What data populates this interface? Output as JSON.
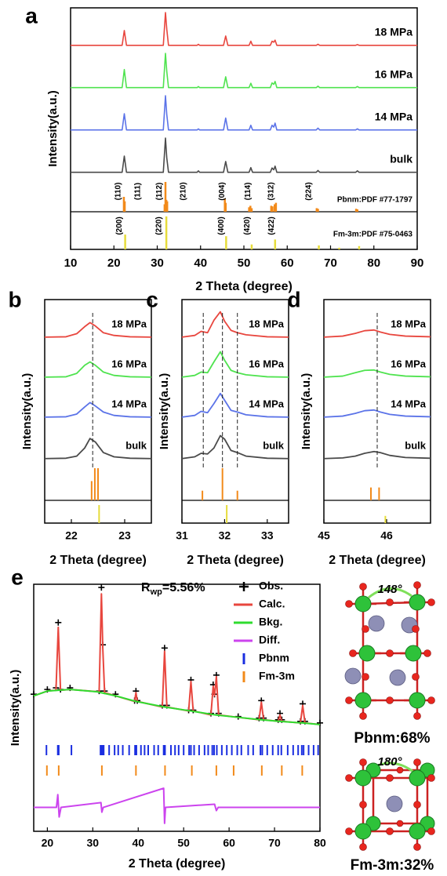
{
  "chart_data": [
    {
      "type": "line",
      "panel_label": "a",
      "xlabel": "2 Theta (degree)",
      "ylabel": "Intensity(a.u.)",
      "xlim": [
        10,
        90
      ],
      "xticks": [
        10,
        20,
        30,
        40,
        50,
        60,
        70,
        80,
        90
      ],
      "ylim": [
        0,
        100
      ],
      "x": [
        10,
        21.9,
        22.4,
        22.9,
        31.4,
        31.9,
        32.2,
        32.6,
        39.2,
        39.5,
        39.8,
        45.3,
        45.8,
        46.3,
        51.2,
        51.6,
        52.0,
        56.1,
        56.5,
        56.9,
        57.2,
        57.6,
        66.7,
        67.1,
        67.5,
        75.8,
        76.2,
        76.6,
        90
      ],
      "series": [
        {
          "name": "18 MPa",
          "color": "#e8463e",
          "values": [
            5,
            5,
            48,
            5,
            5,
            100,
            52,
            5,
            5,
            8,
            5,
            5,
            32,
            5,
            5,
            17,
            5,
            5,
            17,
            14,
            20,
            5,
            5,
            8,
            5,
            5,
            7,
            5,
            5
          ]
        },
        {
          "name": "16 MPa",
          "color": "#4fe34f",
          "values": [
            5,
            5,
            55,
            5,
            5,
            100,
            50,
            5,
            5,
            8,
            5,
            5,
            35,
            5,
            5,
            17,
            5,
            5,
            18,
            14,
            22,
            5,
            5,
            9,
            5,
            5,
            8,
            5,
            5
          ]
        },
        {
          "name": "14 MPa",
          "color": "#5b73e8",
          "values": [
            5,
            5,
            50,
            5,
            5,
            100,
            48,
            5,
            5,
            8,
            5,
            5,
            38,
            5,
            5,
            18,
            5,
            5,
            18,
            13,
            24,
            5,
            5,
            10,
            5,
            5,
            8,
            5,
            5
          ]
        },
        {
          "name": "bulk",
          "color": "#4a4a4a",
          "values": [
            5,
            5,
            50,
            5,
            5,
            100,
            45,
            5,
            5,
            9,
            5,
            5,
            35,
            5,
            5,
            18,
            5,
            5,
            17,
            12,
            22,
            5,
            5,
            10,
            5,
            5,
            9,
            5,
            5
          ]
        }
      ],
      "references": [
        {
          "name": "Pbnm:PDF #77-1797",
          "color": "#f28a1a",
          "positions": [
            22.3,
            22.5,
            31.7,
            31.9,
            32.1,
            32.3,
            45.6,
            45.8,
            51.2,
            51.5,
            51.8,
            56.3,
            56.6,
            57.1,
            57.4,
            66.8,
            67.1,
            75.9,
            76.2
          ],
          "heights": [
            50,
            35,
            25,
            100,
            40,
            35,
            45,
            30,
            15,
            20,
            12,
            20,
            18,
            25,
            30,
            12,
            10,
            10,
            8
          ],
          "hkl": [
            {
              "label": "(110)",
              "x": 21
            },
            {
              "label": "(111)",
              "x": 25.5
            },
            {
              "label": "(112)",
              "x": 30.5
            },
            {
              "label": "(210)",
              "x": 36
            },
            {
              "label": "(004)",
              "x": 45
            },
            {
              "label": "(114)",
              "x": 51
            },
            {
              "label": "(312)",
              "x": 56.3
            },
            {
              "label": "(224)",
              "x": 65
            }
          ]
        },
        {
          "name": "Fm-3m:PDF #75-0463",
          "color": "#e6dc3c",
          "positions": [
            22.6,
            32.1,
            45.9,
            51.8,
            57.2,
            67.3,
            72.0,
            76.6
          ],
          "heights": [
            45,
            100,
            40,
            15,
            30,
            12,
            5,
            10
          ],
          "hkl": [
            {
              "label": "(200)",
              "x": 21.3
            },
            {
              "label": "(220)",
              "x": 30.4
            },
            {
              "label": "(400)",
              "x": 44.8
            },
            {
              "label": "(420)",
              "x": 50.8
            },
            {
              "label": "(422)",
              "x": 56.4
            }
          ]
        }
      ]
    },
    {
      "type": "line",
      "panel_label": "b",
      "xlabel": "2 Theta (degree)",
      "ylabel": "Intensity(a.u.)",
      "xlim": [
        21.5,
        23.5
      ],
      "xticks": [
        22,
        23
      ],
      "ylim": [
        0,
        100
      ],
      "x": [
        21.5,
        21.9,
        22.1,
        22.25,
        22.35,
        22.45,
        22.6,
        22.8,
        23.1,
        23.5
      ],
      "series": [
        {
          "name": "18 MPa",
          "color": "#e8463e",
          "values": [
            5,
            6,
            15,
            36,
            48,
            38,
            18,
            10,
            6,
            5
          ]
        },
        {
          "name": "16 MPa",
          "color": "#4fe34f",
          "values": [
            5,
            6,
            16,
            40,
            50,
            40,
            20,
            10,
            6,
            5
          ]
        },
        {
          "name": "14 MPa",
          "color": "#5b73e8",
          "values": [
            5,
            6,
            14,
            35,
            48,
            38,
            20,
            10,
            6,
            5
          ]
        },
        {
          "name": "bulk",
          "color": "#4a4a4a",
          "values": [
            5,
            6,
            12,
            35,
            62,
            52,
            22,
            10,
            6,
            5
          ]
        }
      ],
      "guides": [
        22.4
      ],
      "references": [
        {
          "color": "#f28a1a",
          "positions": [
            22.38,
            22.44,
            22.5
          ],
          "heights": [
            60,
            100,
            100
          ]
        },
        {
          "color": "#e6dc3c",
          "positions": [
            22.52
          ],
          "heights": [
            100
          ]
        }
      ]
    },
    {
      "type": "line",
      "panel_label": "c",
      "xlabel": "2 Theta (degree)",
      "ylabel": "Intensity(a.u.)",
      "xlim": [
        31,
        33.5
      ],
      "xticks": [
        31,
        32,
        33
      ],
      "ylim": [
        0,
        100
      ],
      "x": [
        31,
        31.3,
        31.45,
        31.6,
        31.75,
        31.9,
        32.0,
        32.15,
        32.3,
        32.5,
        33,
        33.5
      ],
      "series": [
        {
          "name": "18 MPa",
          "color": "#e8463e",
          "values": [
            5,
            10,
            22,
            18,
            55,
            80,
            52,
            25,
            18,
            12,
            6,
            5
          ]
        },
        {
          "name": "16 MPa",
          "color": "#4fe34f",
          "values": [
            5,
            10,
            20,
            18,
            50,
            80,
            55,
            25,
            18,
            12,
            6,
            5
          ]
        },
        {
          "name": "14 MPa",
          "color": "#5b73e8",
          "values": [
            5,
            10,
            22,
            18,
            45,
            75,
            55,
            25,
            20,
            12,
            6,
            5
          ]
        },
        {
          "name": "bulk",
          "color": "#4a4a4a",
          "values": [
            5,
            10,
            20,
            18,
            35,
            70,
            60,
            28,
            22,
            12,
            6,
            5
          ]
        }
      ],
      "guides": [
        31.5,
        31.95,
        32.3
      ],
      "references": [
        {
          "color": "#f28a1a",
          "positions": [
            31.48,
            31.95,
            32.3
          ],
          "heights": [
            30,
            100,
            30
          ]
        },
        {
          "color": "#e6dc3c",
          "positions": [
            32.05
          ],
          "heights": [
            100
          ]
        }
      ]
    },
    {
      "type": "line",
      "panel_label": "d",
      "xlabel": "2 Theta (degree)",
      "ylabel": "Intensity(a.u.)",
      "xlim": [
        45,
        46.7
      ],
      "xticks": [
        45,
        46
      ],
      "ylim": [
        0,
        100
      ],
      "x": [
        45,
        45.3,
        45.5,
        45.65,
        45.8,
        45.9,
        46.05,
        46.3,
        46.7
      ],
      "series": [
        {
          "name": "18 MPa",
          "color": "#e8463e",
          "values": [
            5,
            8,
            16,
            24,
            26,
            20,
            13,
            8,
            6
          ]
        },
        {
          "name": "16 MPa",
          "color": "#4fe34f",
          "values": [
            5,
            8,
            18,
            25,
            26,
            20,
            13,
            8,
            6
          ]
        },
        {
          "name": "14 MPa",
          "color": "#5b73e8",
          "values": [
            5,
            8,
            16,
            24,
            26,
            20,
            13,
            8,
            6
          ]
        },
        {
          "name": "bulk",
          "color": "#4a4a4a",
          "values": [
            5,
            7,
            12,
            20,
            25,
            22,
            14,
            8,
            6
          ]
        }
      ],
      "guides": [
        45.85
      ],
      "references": [
        {
          "color": "#f28a1a",
          "positions": [
            45.75,
            45.88
          ],
          "heights": [
            40,
            40
          ]
        },
        {
          "color": "#e6dc3c",
          "positions": [
            45.98
          ],
          "heights": [
            40
          ]
        }
      ]
    },
    {
      "type": "rietveld",
      "panel_label": "e",
      "xlabel": "2 Theta (degree)",
      "ylabel": "Intensity(a.u.)",
      "annotation": {
        "main": "R",
        "sub": "wp",
        "rest": "=5.56%"
      },
      "xlim": [
        17,
        80
      ],
      "xticks": [
        20,
        30,
        40,
        50,
        60,
        70,
        80
      ],
      "ylim": [
        -45,
        110
      ],
      "x": [
        17,
        20,
        21.9,
        22.4,
        22.9,
        25,
        31.4,
        31.9,
        32.2,
        32.6,
        35,
        39.2,
        39.5,
        39.8,
        45.3,
        45.8,
        46.3,
        51.1,
        51.6,
        52.1,
        56.0,
        56.5,
        56.8,
        57.2,
        57.7,
        62,
        66.6,
        67.1,
        67.6,
        70.8,
        71.2,
        71.6,
        75.7,
        76.2,
        76.7,
        80
      ],
      "series": [
        {
          "name": "Obs.",
          "color": "#000000",
          "style": "markers",
          "values": [
            41,
            44,
            45,
            86,
            44,
            45,
            43,
            108,
            72,
            43,
            41,
            37,
            43,
            37,
            34,
            70,
            34,
            31,
            50,
            31,
            29,
            47,
            41,
            53,
            29,
            27,
            26,
            37,
            26,
            25,
            29,
            25,
            24,
            35,
            24,
            23
          ]
        },
        {
          "name": "Calc.",
          "color": "#e8463e",
          "style": "line",
          "values": [
            40,
            43,
            43.5,
            83,
            43.5,
            44,
            42.5,
            104,
            70,
            42,
            40,
            36.5,
            42,
            36.5,
            33,
            68,
            33,
            30.5,
            49,
            30.5,
            28,
            46,
            40,
            52,
            28,
            26.5,
            25,
            36,
            25,
            24,
            28,
            24,
            23,
            34,
            23,
            22
          ]
        },
        {
          "name": "Bkg.",
          "color": "#2fdc2f",
          "style": "line",
          "x": [
            17,
            20,
            25,
            31,
            35,
            39.5,
            45.8,
            51.6,
            57,
            62,
            67,
            71,
            76,
            80
          ],
          "values": [
            40,
            43,
            44,
            42.5,
            40,
            36.5,
            33,
            30.5,
            28,
            26.5,
            25,
            24,
            23,
            22
          ]
        },
        {
          "name": "Diff.",
          "color": "#cc44ee",
          "style": "line",
          "x": [
            17,
            22,
            22.3,
            22.6,
            23,
            31.8,
            32.0,
            32.3,
            45.6,
            45.8,
            46.0,
            56.8,
            57.2,
            57.6,
            80
          ],
          "values": [
            -30,
            -30,
            -22,
            -36,
            -30,
            -27,
            -33,
            -30,
            -18,
            -40,
            -30,
            -28,
            -32,
            -30,
            -30
          ]
        },
        {
          "name": "Pbnm",
          "color": "#1a2ee0",
          "style": "ticks",
          "x": [
            19.8,
            22.3,
            22.5,
            25.3,
            31.7,
            31.9,
            32.1,
            32.4,
            33.6,
            34.8,
            35.6,
            36.6,
            38.0,
            39.3,
            39.6,
            40.6,
            41.4,
            42.2,
            43.5,
            44.4,
            45.6,
            45.9,
            47.2,
            48.1,
            48.9,
            50.0,
            51.2,
            51.6,
            52.3,
            53.4,
            54.6,
            55.4,
            56.3,
            56.7,
            57.3,
            58.4,
            59.5,
            60.6,
            61.8,
            62.7,
            64.2,
            65.3,
            66.9,
            67.3,
            68.4,
            69.6,
            70.8,
            71.5,
            72.9,
            74.1,
            75.2,
            76.0,
            76.4,
            77.5,
            78.6,
            79.6
          ]
        },
        {
          "name": "Fm-3m",
          "color": "#f28a1a",
          "style": "ticks",
          "x": [
            19.9,
            22.5,
            32.0,
            39.5,
            45.9,
            51.8,
            57.2,
            61.0,
            67.2,
            71.6,
            76.1
          ]
        }
      ]
    }
  ],
  "structures": [
    {
      "angle": "148°",
      "label": "Pbnm:68%"
    },
    {
      "angle": "180°",
      "label": "Fm-3m:32%"
    }
  ]
}
